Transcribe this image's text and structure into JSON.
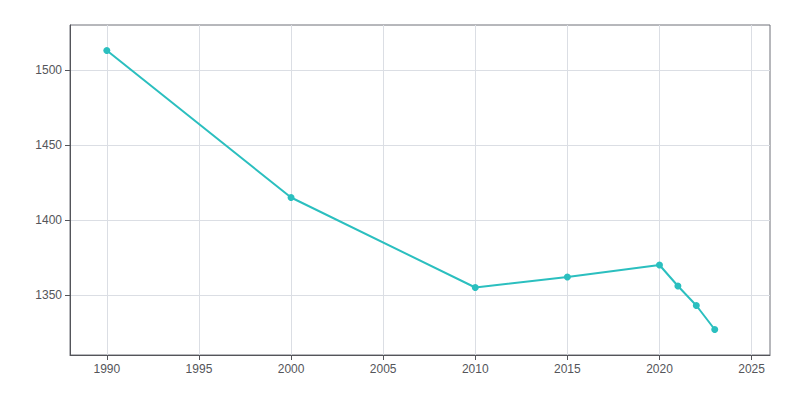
{
  "chart_data": {
    "type": "line",
    "x": [
      1990,
      2000,
      2010,
      2015,
      2020,
      2021,
      2022,
      2023
    ],
    "values": [
      1513,
      1415,
      1355,
      1362,
      1370,
      1356,
      1343,
      1327
    ],
    "color": "#2bbfbf",
    "marker": "circle",
    "line_style": "solid",
    "xlim": [
      1988,
      2026
    ],
    "ylim": [
      1310,
      1530
    ],
    "xticks": [
      1990,
      1995,
      2000,
      2005,
      2010,
      2015,
      2020,
      2025
    ],
    "yticks": [
      1350,
      1400,
      1450,
      1500
    ],
    "grid": true
  }
}
